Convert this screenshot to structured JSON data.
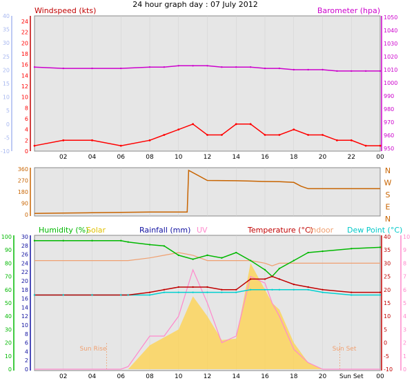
{
  "title": "24 hour graph day : 07 July 2012",
  "colors": {
    "wind_axis": "#a8b8f0",
    "wind": "#ff0000",
    "gust_fill": "#a8b0e8",
    "avg": "#0000dd",
    "baro": "#cc00cc",
    "dir": "#c86400",
    "humidity": "#00b800",
    "solar": "#ffd24a",
    "rain": "#1010a0",
    "uv": "#ff88cc",
    "temp": "#c00000",
    "indoor": "#f0a070",
    "dew": "#00d0d0",
    "plot_bg": "#e6e6e6"
  },
  "x_ticks": [
    "02",
    "04",
    "06",
    "08",
    "10",
    "12",
    "14",
    "16",
    "18",
    "20",
    "22",
    "00"
  ],
  "x_ticks_bottom": [
    "02",
    "04",
    "06",
    "08",
    "10",
    "12",
    "14",
    "16",
    "18",
    "20",
    "Sun Set",
    "00"
  ],
  "panel1": {
    "left_label": "Windspeed (kts)",
    "right_label": "Barometer (hpa)",
    "outer_ticks": [
      "40",
      "35",
      "30",
      "25",
      "20",
      "15",
      "10",
      "5",
      "0",
      "-5",
      "-10"
    ],
    "inner_ticks": [
      "24",
      "22",
      "20",
      "18",
      "16",
      "14",
      "12",
      "10",
      "8",
      "6",
      "4",
      "2",
      "0"
    ],
    "right_ticks": [
      "1050",
      "1040",
      "1030",
      "1020",
      "1010",
      "1000",
      "990",
      "980",
      "970",
      "960",
      "950"
    ]
  },
  "panel2": {
    "left_ticks": [
      "360",
      "270",
      "180",
      "90",
      "0"
    ],
    "compass": [
      "N",
      "W",
      "S",
      "E",
      "N"
    ]
  },
  "panel3": {
    "labels": {
      "humidity": "Humidity (%)",
      "solar": "Solar",
      "rain": "Rainfall (mm)",
      "uv": "UV",
      "temp": "Temperature (°C)",
      "indoor": "Indoor",
      "dew": "Dew Point (°C)"
    },
    "humidity_ticks": [
      "100",
      "90",
      "80",
      "70",
      "60",
      "50",
      "40",
      "30",
      "20",
      "10",
      "0"
    ],
    "rain_ticks": [
      "30",
      "28",
      "26",
      "24",
      "22",
      "20",
      "18",
      "16",
      "14",
      "12",
      "10",
      "8",
      "6",
      "4",
      "2",
      "0"
    ],
    "temp_ticks": [
      "40",
      "35",
      "30",
      "25",
      "20",
      "15",
      "10",
      "5",
      "0",
      "-5",
      "-10"
    ],
    "uv_ticks": [
      "10",
      "9",
      "8",
      "7",
      "6",
      "5",
      "4",
      "3",
      "2",
      "1",
      "0"
    ],
    "sunrise": "Sun Rise",
    "sunset": "Sun Set"
  },
  "chart_data": [
    {
      "type": "line",
      "title": "24 hour graph day : 07 July 2012",
      "ylabel": "Windspeed (kts)",
      "ylabel_right": "Barometer (hpa)",
      "ylim": [
        0,
        24
      ],
      "ylim_right": [
        950,
        1050
      ],
      "x_hours": [
        0,
        2,
        4,
        6,
        8,
        9,
        10,
        11,
        12,
        13,
        14,
        15,
        16,
        17,
        18,
        19,
        20,
        21,
        22,
        23,
        24
      ],
      "series": [
        {
          "name": "Windspeed (kts)",
          "role": "wind",
          "y": [
            1,
            2,
            2,
            1,
            2,
            3,
            4,
            5,
            3,
            3,
            5,
            5,
            3,
            3,
            4,
            3,
            3,
            2,
            2,
            1,
            1
          ]
        },
        {
          "name": "Barometer (hpa)",
          "role": "baro",
          "y": [
            1012,
            1011,
            1011,
            1011,
            1012,
            1012,
            1013,
            1013,
            1013,
            1012,
            1012,
            1012,
            1011,
            1011,
            1010,
            1010,
            1010,
            1009,
            1009,
            1009,
            1009
          ]
        }
      ]
    },
    {
      "type": "line",
      "ylim": [
        0,
        360
      ],
      "x_hours": [
        0,
        2,
        4,
        6,
        8,
        10,
        10.6,
        10.7,
        12,
        14,
        15,
        16,
        17,
        18,
        18.5,
        19,
        20,
        22,
        24
      ],
      "series": [
        {
          "role": "direction",
          "y": [
            10,
            12,
            15,
            18,
            20,
            20,
            20,
            350,
            270,
            268,
            265,
            262,
            260,
            255,
            225,
            205,
            205,
            205,
            205
          ]
        }
      ]
    },
    {
      "type": "line",
      "x_hours": [
        0,
        2,
        4,
        6,
        6.5,
        8,
        9,
        10,
        11,
        12,
        13,
        14,
        15,
        16,
        16.5,
        17,
        18,
        19,
        20,
        22,
        24
      ],
      "series": [
        {
          "name": "Humidity (%)",
          "role": "humidity",
          "ylim": [
            0,
            100
          ],
          "y": [
            97,
            97,
            97,
            97,
            96,
            94,
            93,
            86,
            83,
            86,
            84,
            88,
            82,
            75,
            70,
            76,
            82,
            88,
            89,
            91,
            92
          ]
        },
        {
          "name": "Temperature (°C)",
          "role": "temp",
          "ylim": [
            -10,
            40
          ],
          "y": [
            18,
            18,
            18,
            18,
            18,
            19,
            20,
            21,
            21,
            21,
            20,
            20,
            24,
            24,
            25,
            24,
            22,
            21,
            20,
            19,
            19
          ]
        },
        {
          "name": "Dew Point (°C)",
          "role": "dew",
          "ylim": [
            -10,
            40
          ],
          "y": [
            18,
            18,
            18,
            18,
            18,
            18,
            19,
            19,
            19,
            19,
            19,
            19,
            20,
            20,
            20,
            20,
            20,
            20,
            19,
            18,
            18
          ]
        },
        {
          "name": "Indoor",
          "role": "indoor",
          "ylim": [
            -10,
            40
          ],
          "y": [
            31,
            31,
            31,
            31,
            31,
            32,
            33,
            34,
            33,
            31,
            31,
            31,
            31,
            30,
            29,
            30,
            30,
            30,
            30,
            30,
            30
          ]
        },
        {
          "name": "Solar",
          "role": "solar",
          "ylim": [
            0,
            10
          ],
          "y": [
            0,
            0,
            0,
            0,
            0,
            1.8,
            2.4,
            3,
            5.5,
            4,
            2.2,
            2.3,
            8,
            6,
            5,
            4.5,
            2,
            0.5,
            0,
            0,
            0
          ]
        },
        {
          "name": "UV",
          "role": "uv",
          "ylim": [
            0,
            10
          ],
          "y": [
            0,
            0,
            0,
            0,
            0.2,
            2.5,
            2.5,
            4,
            7.5,
            5,
            2,
            2.5,
            7,
            6.5,
            5,
            4,
            1.5,
            0.5,
            0,
            0,
            0
          ]
        }
      ]
    }
  ]
}
